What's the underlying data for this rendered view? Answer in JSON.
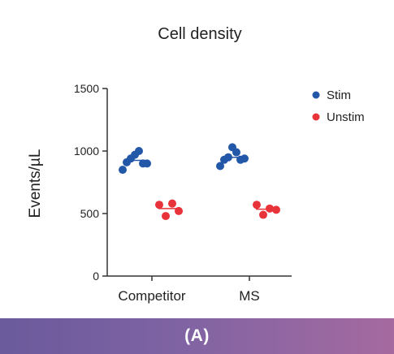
{
  "chart_data": {
    "type": "scatter",
    "title": "Cell density",
    "ylabel": "Events/µL",
    "xlabel": "",
    "ylim": [
      0,
      1500
    ],
    "yticks": [
      0,
      500,
      1000,
      1500
    ],
    "categories": [
      "Competitor",
      "MS"
    ],
    "legend_position": "top-right",
    "series": [
      {
        "name": "Stim",
        "color": "#2357a8",
        "points": [
          {
            "category": "Competitor",
            "values": [
              850,
              910,
              940,
              970,
              1000,
              900,
              900
            ]
          },
          {
            "category": "MS",
            "values": [
              880,
              930,
              950,
              1030,
              990,
              930,
              940
            ]
          }
        ],
        "means": [
          925,
          950
        ]
      },
      {
        "name": "Unstim",
        "color": "#e8333a",
        "points": [
          {
            "category": "Competitor",
            "values": [
              570,
              480,
              580,
              520
            ]
          },
          {
            "category": "MS",
            "values": [
              570,
              490,
              540,
              530
            ]
          }
        ],
        "means": [
          540,
          535
        ]
      }
    ]
  },
  "footer": {
    "label": "(A)"
  }
}
